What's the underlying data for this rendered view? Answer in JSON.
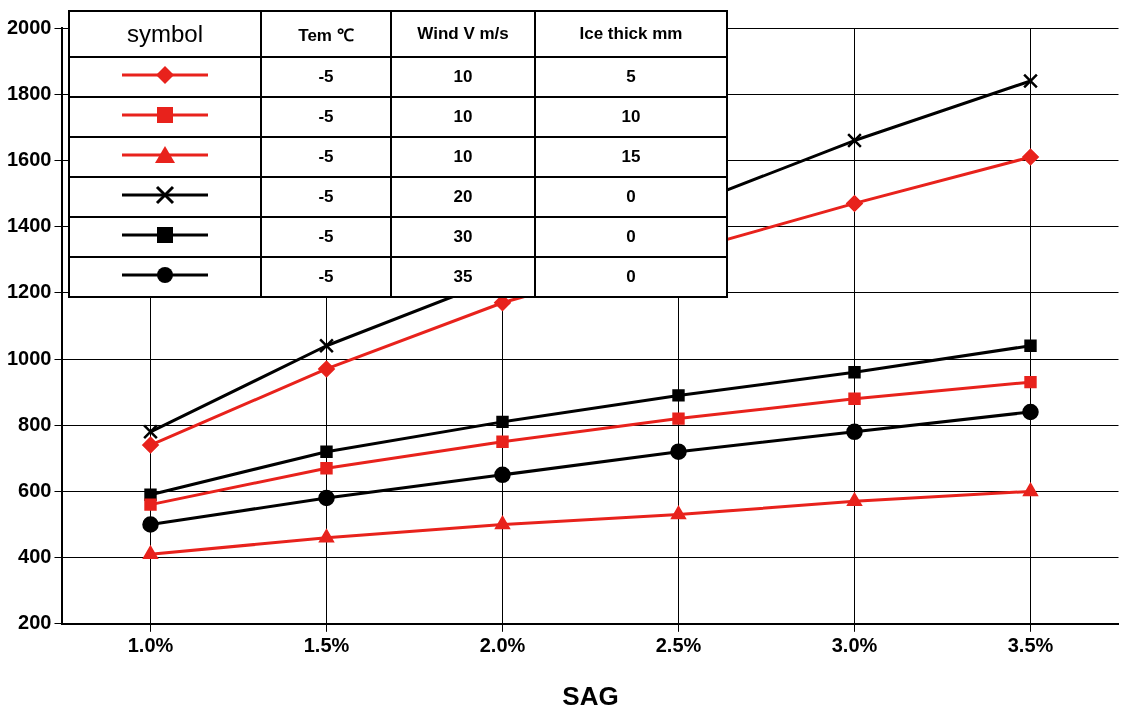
{
  "chart_data": {
    "type": "line",
    "xlabel": "SAG",
    "x": [
      1.0,
      1.5,
      2.0,
      2.5,
      3.0,
      3.5
    ],
    "xlim": [
      0.75,
      3.75
    ],
    "xticks": [
      {
        "value": 1.0,
        "label": "1.0%"
      },
      {
        "value": 1.5,
        "label": "1.5%"
      },
      {
        "value": 2.0,
        "label": "2.0%"
      },
      {
        "value": 2.5,
        "label": "2.5%"
      },
      {
        "value": 3.0,
        "label": "3.0%"
      },
      {
        "value": 3.5,
        "label": "3.5%"
      }
    ],
    "ylim": [
      200,
      2000
    ],
    "yticks": [
      200,
      400,
      600,
      800,
      1000,
      1200,
      1400,
      1600,
      1800,
      2000
    ],
    "grid": true,
    "line_style": "solid",
    "annotations": [
      "symbol",
      "Tem ℃",
      "Wind V m/s",
      "Ice thick mm",
      "-5",
      "10",
      "5",
      "-5",
      "10",
      "10",
      "-5",
      "10",
      "15",
      "-5",
      "20",
      "0",
      "-5",
      "30",
      "0",
      "-5",
      "35",
      "0"
    ],
    "series": [
      {
        "color": "#e8221c",
        "marker": "diamond",
        "values": [
          740,
          970,
          1170,
          null,
          1470,
          1610
        ]
      },
      {
        "color": "#e8221c",
        "marker": "square",
        "values": [
          560,
          670,
          750,
          820,
          880,
          930
        ]
      },
      {
        "color": "#e8221c",
        "marker": "triangle",
        "values": [
          410,
          460,
          500,
          530,
          570,
          600
        ]
      },
      {
        "color": "#000000",
        "marker": "cross",
        "values": [
          780,
          1040,
          null,
          null,
          1660,
          1840
        ]
      },
      {
        "color": "#000000",
        "marker": "square",
        "values": [
          590,
          720,
          810,
          890,
          960,
          1040
        ]
      },
      {
        "color": "#000000",
        "marker": "circle",
        "values": [
          500,
          580,
          650,
          720,
          780,
          840
        ]
      }
    ]
  }
}
